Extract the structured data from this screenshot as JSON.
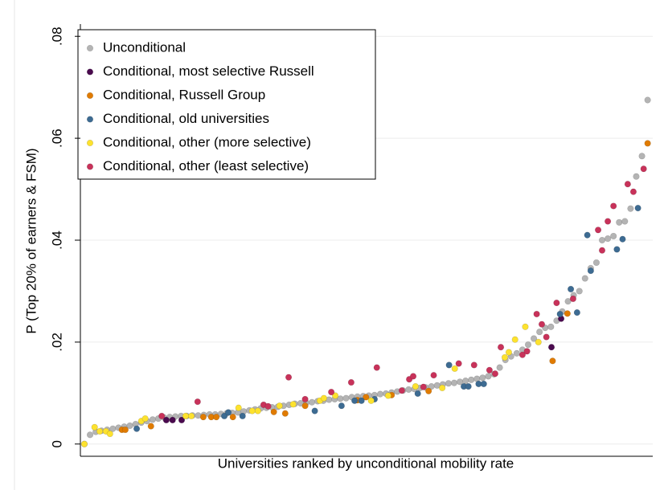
{
  "chart_data": {
    "type": "scatter",
    "x_label": "Universities ranked by unconditional mobility rate",
    "y_label": "P (Top 20% of earners & FSM)",
    "xlim": [
      0.3,
      100.9
    ],
    "ylim": [
      -0.0024,
      0.0824
    ],
    "yticks": [
      0,
      {
        "value": 0.02,
        "label": ".02"
      },
      {
        "value": 0.04,
        "label": ".04"
      },
      {
        "value": 0.06,
        "label": ".06"
      },
      {
        "value": 0.08,
        "label": ".08"
      }
    ],
    "grid": true,
    "legend": "top-left",
    "series": [
      {
        "name": "Unconditional",
        "color": "#b4b4b4",
        "x": [
          1,
          2,
          3,
          4,
          5,
          6,
          7,
          8,
          9,
          10,
          11,
          12,
          13,
          14,
          15,
          16,
          17,
          18,
          19,
          20,
          21,
          22,
          23,
          24,
          25,
          26,
          27,
          28,
          29,
          30,
          31,
          32,
          33,
          34,
          35,
          36,
          37,
          38,
          39,
          40,
          41,
          42,
          43,
          44,
          45,
          46,
          47,
          48,
          49,
          50,
          51,
          52,
          53,
          54,
          55,
          56,
          57,
          58,
          59,
          60,
          61,
          62,
          63,
          64,
          65,
          66,
          67,
          68,
          69,
          70,
          71,
          72,
          73,
          74,
          75,
          76,
          77,
          78,
          79,
          80,
          81,
          82,
          83,
          84,
          85,
          86,
          87,
          88,
          89,
          90,
          91,
          92,
          93,
          94,
          95,
          96,
          97,
          98,
          99,
          100
        ],
        "values": [
          0,
          0.0018,
          0.0024,
          0.0026,
          0.0028,
          0.003,
          0.0032,
          0.0034,
          0.0036,
          0.0039,
          0.0042,
          0.0045,
          0.0048,
          0.005,
          0.0052,
          0.0053,
          0.0054,
          0.0055,
          0.0055,
          0.0056,
          0.0056,
          0.0057,
          0.0058,
          0.0058,
          0.0059,
          0.006,
          0.0061,
          0.0062,
          0.0064,
          0.0066,
          0.0068,
          0.007,
          0.0071,
          0.0072,
          0.0073,
          0.0075,
          0.0077,
          0.0079,
          0.008,
          0.0081,
          0.0082,
          0.0084,
          0.0085,
          0.0087,
          0.0088,
          0.0089,
          0.009,
          0.0092,
          0.0093,
          0.0094,
          0.0095,
          0.0096,
          0.0098,
          0.0099,
          0.0101,
          0.0103,
          0.0105,
          0.0107,
          0.0108,
          0.011,
          0.0111,
          0.0113,
          0.0115,
          0.0117,
          0.0119,
          0.012,
          0.0122,
          0.0124,
          0.0126,
          0.0128,
          0.013,
          0.0133,
          0.0137,
          0.015,
          0.0165,
          0.0172,
          0.0178,
          0.0185,
          0.0195,
          0.0207,
          0.022,
          0.0228,
          0.023,
          0.0242,
          0.026,
          0.028,
          0.0292,
          0.03,
          0.0325,
          0.0345,
          0.0356,
          0.04,
          0.0403,
          0.0408,
          0.0435,
          0.0437,
          0.0462,
          0.0525,
          0.0565,
          0.0675
        ]
      },
      {
        "name": "Conditional, most selective Russell",
        "color": "#4a0a4e",
        "x": [
          15.4,
          16.5,
          18.1,
          83.1,
          84.8
        ],
        "values": [
          0.0047,
          0.0047,
          0.0047,
          0.019,
          0.0246
        ]
      },
      {
        "name": "Conditional, Russell Group",
        "color": "#e07b00",
        "x": [
          7.6,
          8.2,
          12.7,
          21.9,
          23.3,
          24.2,
          27.1,
          34.3,
          36.3,
          39.8,
          49.0,
          50.5,
          55.0,
          61.5,
          83.3,
          85.9,
          100
        ],
        "values": [
          0.0028,
          0.0028,
          0.0035,
          0.0053,
          0.0053,
          0.0053,
          0.0053,
          0.0063,
          0.006,
          0.0075,
          0.0086,
          0.0092,
          0.0096,
          0.0104,
          0.0163,
          0.0256,
          0.059
        ]
      },
      {
        "name": "Conditional, old universities",
        "color": "#3d6b92",
        "x": [
          10.2,
          25.6,
          26.3,
          28.8,
          41.5,
          46.2,
          48.5,
          49.7,
          52.0,
          59.6,
          65.1,
          67.7,
          68.5,
          70.3,
          71.2,
          84.6,
          86.5,
          87.6,
          89.4,
          90.0,
          94.6,
          95.6,
          98.3
        ],
        "values": [
          0.003,
          0.0055,
          0.0062,
          0.0055,
          0.0065,
          0.0075,
          0.0085,
          0.0085,
          0.0088,
          0.0099,
          0.0155,
          0.0113,
          0.0113,
          0.0118,
          0.0118,
          0.0255,
          0.0304,
          0.0258,
          0.041,
          0.034,
          0.0382,
          0.0402,
          0.0463
        ]
      },
      {
        "name": "Conditional, other (more selective)",
        "color": "#fde22e",
        "x": [
          1,
          2.8,
          3.7,
          4.8,
          5.5,
          11.0,
          11.7,
          18.8,
          19.8,
          28.1,
          30.5,
          31.5,
          35.3,
          37.7,
          42.4,
          43.1,
          45.1,
          51.4,
          54.4,
          59.2,
          63.9,
          66.1,
          74.9,
          75.6,
          76.7,
          78.5,
          80.8
        ],
        "values": [
          0,
          0.0033,
          0.0025,
          0.0025,
          0.002,
          0.0045,
          0.005,
          0.0055,
          0.0055,
          0.0071,
          0.0065,
          0.0065,
          0.0075,
          0.0078,
          0.0085,
          0.009,
          0.0095,
          0.0085,
          0.0095,
          0.0113,
          0.011,
          0.0148,
          0.017,
          0.018,
          0.0205,
          0.023,
          0.02
        ]
      },
      {
        "name": "Conditional, other (least selective)",
        "color": "#c8325a",
        "x": [
          14.6,
          20.9,
          32.5,
          33.3,
          36.9,
          39.8,
          44.4,
          47.9,
          52.4,
          56.8,
          58.1,
          58.8,
          60.6,
          62.4,
          66.8,
          69.5,
          72.2,
          73.2,
          74.2,
          78.0,
          78.8,
          80.5,
          81.4,
          82.2,
          84.0,
          86.9,
          91.3,
          92.0,
          93.0,
          94.0,
          96.5,
          97.5,
          99.3
        ],
        "values": [
          0.0055,
          0.0083,
          0.0077,
          0.0074,
          0.0131,
          0.0088,
          0.0102,
          0.0121,
          0.015,
          0.0105,
          0.0127,
          0.0133,
          0.0112,
          0.0135,
          0.0158,
          0.0155,
          0.0145,
          0.0138,
          0.019,
          0.0175,
          0.0182,
          0.0255,
          0.0235,
          0.021,
          0.0277,
          0.0285,
          0.042,
          0.038,
          0.0437,
          0.0467,
          0.051,
          0.0495,
          0.054
        ]
      }
    ]
  }
}
